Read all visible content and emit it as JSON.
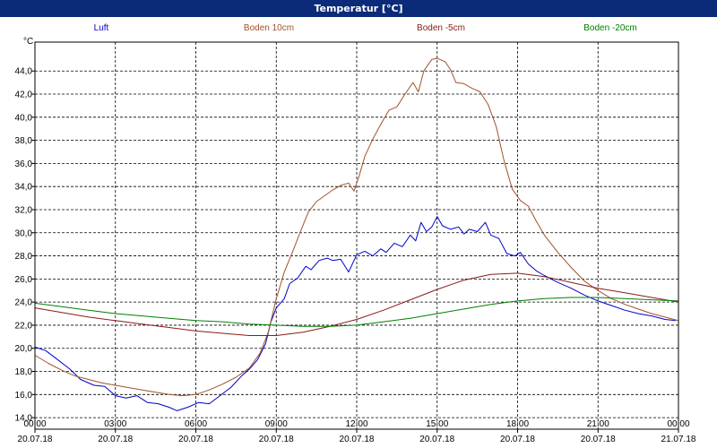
{
  "window": {
    "title": "Temperatur [°C]"
  },
  "chart_data": {
    "type": "line",
    "ylabel": "°C",
    "ylim": [
      13.0,
      46.5
    ],
    "xlim": [
      0,
      24
    ],
    "grid": true,
    "legend_placement": "top",
    "y_ticks": [
      {
        "value": 14,
        "label": "14,0"
      },
      {
        "value": 16,
        "label": "16,0"
      },
      {
        "value": 18,
        "label": "18,0"
      },
      {
        "value": 20,
        "label": "20,0"
      },
      {
        "value": 22,
        "label": "22,0"
      },
      {
        "value": 24,
        "label": "24,0"
      },
      {
        "value": 26,
        "label": "26,0"
      },
      {
        "value": 28,
        "label": "28,0"
      },
      {
        "value": 30,
        "label": "30,0"
      },
      {
        "value": 32,
        "label": "32,0"
      },
      {
        "value": 34,
        "label": "34,0"
      },
      {
        "value": 36,
        "label": "36,0"
      },
      {
        "value": 38,
        "label": "38,0"
      },
      {
        "value": 40,
        "label": "40,0"
      },
      {
        "value": 42,
        "label": "42,0"
      },
      {
        "value": 44,
        "label": "44,0"
      }
    ],
    "x_ticks": [
      {
        "value": 0,
        "time": "00:00",
        "date": "20.07.18"
      },
      {
        "value": 3,
        "time": "03:00",
        "date": "20.07.18"
      },
      {
        "value": 6,
        "time": "06:00",
        "date": "20.07.18"
      },
      {
        "value": 9,
        "time": "09:00",
        "date": "20.07.18"
      },
      {
        "value": 12,
        "time": "12:00",
        "date": "20.07.18"
      },
      {
        "value": 15,
        "time": "15:00",
        "date": "20.07.18"
      },
      {
        "value": 18,
        "time": "18:00",
        "date": "20.07.18"
      },
      {
        "value": 21,
        "time": "21:00",
        "date": "20.07.18"
      },
      {
        "value": 24,
        "time": "00:00",
        "date": "21.07.18"
      }
    ],
    "series": [
      {
        "name": "Luft",
        "color": "#0000cc",
        "points": [
          [
            0,
            20.1
          ],
          [
            0.4,
            19.8
          ],
          [
            0.8,
            19.1
          ],
          [
            1.3,
            18.2
          ],
          [
            1.7,
            17.3
          ],
          [
            2.2,
            16.8
          ],
          [
            2.6,
            16.7
          ],
          [
            3.0,
            15.9
          ],
          [
            3.4,
            15.7
          ],
          [
            3.8,
            15.9
          ],
          [
            4.2,
            15.3
          ],
          [
            4.6,
            15.2
          ],
          [
            5.0,
            14.9
          ],
          [
            5.3,
            14.6
          ],
          [
            5.7,
            14.9
          ],
          [
            6.1,
            15.3
          ],
          [
            6.5,
            15.2
          ],
          [
            6.9,
            15.9
          ],
          [
            7.3,
            16.6
          ],
          [
            7.7,
            17.6
          ],
          [
            8.0,
            18.2
          ],
          [
            8.3,
            19.0
          ],
          [
            8.6,
            20.4
          ],
          [
            8.8,
            22.3
          ],
          [
            9.0,
            23.5
          ],
          [
            9.3,
            24.3
          ],
          [
            9.5,
            25.6
          ],
          [
            9.8,
            26.1
          ],
          [
            10.1,
            27.1
          ],
          [
            10.3,
            26.8
          ],
          [
            10.6,
            27.6
          ],
          [
            10.9,
            27.8
          ],
          [
            11.1,
            27.6
          ],
          [
            11.4,
            27.7
          ],
          [
            11.7,
            26.6
          ],
          [
            12.0,
            28.1
          ],
          [
            12.3,
            28.4
          ],
          [
            12.6,
            28.0
          ],
          [
            12.9,
            28.6
          ],
          [
            13.1,
            28.3
          ],
          [
            13.4,
            29.1
          ],
          [
            13.7,
            28.8
          ],
          [
            14.0,
            29.8
          ],
          [
            14.2,
            29.3
          ],
          [
            14.4,
            30.9
          ],
          [
            14.6,
            30.1
          ],
          [
            14.8,
            30.5
          ],
          [
            15.0,
            31.4
          ],
          [
            15.2,
            30.6
          ],
          [
            15.5,
            30.3
          ],
          [
            15.8,
            30.5
          ],
          [
            16.0,
            29.9
          ],
          [
            16.2,
            30.3
          ],
          [
            16.5,
            30.1
          ],
          [
            16.8,
            30.9
          ],
          [
            17.0,
            29.8
          ],
          [
            17.3,
            29.5
          ],
          [
            17.6,
            28.2
          ],
          [
            17.9,
            28.0
          ],
          [
            18.1,
            28.3
          ],
          [
            18.4,
            27.3
          ],
          [
            18.7,
            26.7
          ],
          [
            19.0,
            26.3
          ],
          [
            19.5,
            25.7
          ],
          [
            20.0,
            25.2
          ],
          [
            20.5,
            24.6
          ],
          [
            21.0,
            24.1
          ],
          [
            21.5,
            23.7
          ],
          [
            22.0,
            23.3
          ],
          [
            22.5,
            23.0
          ],
          [
            23.0,
            22.8
          ],
          [
            23.5,
            22.5
          ],
          [
            23.9,
            22.4
          ]
        ]
      },
      {
        "name": "Boden 10cm",
        "color": "#a0522d",
        "points": [
          [
            0,
            19.4
          ],
          [
            0.5,
            18.7
          ],
          [
            1.0,
            18.1
          ],
          [
            1.5,
            17.6
          ],
          [
            2.0,
            17.3
          ],
          [
            2.5,
            17.0
          ],
          [
            3.0,
            16.8
          ],
          [
            3.5,
            16.6
          ],
          [
            4.0,
            16.4
          ],
          [
            4.5,
            16.2
          ],
          [
            5.0,
            16.0
          ],
          [
            5.5,
            15.9
          ],
          [
            6.0,
            16.0
          ],
          [
            6.5,
            16.4
          ],
          [
            7.0,
            16.9
          ],
          [
            7.5,
            17.5
          ],
          [
            8.0,
            18.3
          ],
          [
            8.4,
            19.6
          ],
          [
            8.7,
            21.4
          ],
          [
            9.0,
            24.3
          ],
          [
            9.3,
            26.6
          ],
          [
            9.6,
            28.3
          ],
          [
            9.9,
            30.1
          ],
          [
            10.2,
            31.8
          ],
          [
            10.5,
            32.7
          ],
          [
            10.8,
            33.2
          ],
          [
            11.1,
            33.7
          ],
          [
            11.4,
            34.1
          ],
          [
            11.7,
            34.3
          ],
          [
            11.9,
            33.6
          ],
          [
            12.1,
            35.0
          ],
          [
            12.3,
            36.6
          ],
          [
            12.6,
            38.1
          ],
          [
            12.9,
            39.4
          ],
          [
            13.2,
            40.6
          ],
          [
            13.5,
            40.9
          ],
          [
            13.8,
            42.0
          ],
          [
            14.1,
            43.0
          ],
          [
            14.3,
            42.2
          ],
          [
            14.5,
            44.0
          ],
          [
            14.8,
            45.0
          ],
          [
            15.0,
            45.1
          ],
          [
            15.3,
            44.8
          ],
          [
            15.5,
            44.1
          ],
          [
            15.7,
            43.0
          ],
          [
            16.0,
            42.9
          ],
          [
            16.3,
            42.5
          ],
          [
            16.6,
            42.2
          ],
          [
            16.9,
            41.1
          ],
          [
            17.2,
            39.2
          ],
          [
            17.5,
            36.2
          ],
          [
            17.8,
            33.8
          ],
          [
            18.1,
            32.8
          ],
          [
            18.4,
            32.3
          ],
          [
            18.7,
            31.0
          ],
          [
            19.0,
            29.8
          ],
          [
            19.5,
            28.3
          ],
          [
            20.0,
            27.0
          ],
          [
            20.5,
            25.8
          ],
          [
            21.0,
            25.0
          ],
          [
            21.5,
            24.3
          ],
          [
            22.0,
            23.8
          ],
          [
            22.5,
            23.4
          ],
          [
            23.0,
            23.0
          ],
          [
            23.5,
            22.7
          ],
          [
            24.0,
            22.4
          ]
        ]
      },
      {
        "name": "Boden -5cm",
        "color": "#8b1a1a",
        "points": [
          [
            0,
            23.5
          ],
          [
            1.0,
            23.1
          ],
          [
            2.0,
            22.7
          ],
          [
            3.0,
            22.4
          ],
          [
            4.0,
            22.1
          ],
          [
            5.0,
            21.8
          ],
          [
            6.0,
            21.5
          ],
          [
            7.0,
            21.3
          ],
          [
            8.0,
            21.1
          ],
          [
            9.0,
            21.1
          ],
          [
            10.0,
            21.4
          ],
          [
            11.0,
            21.9
          ],
          [
            12.0,
            22.5
          ],
          [
            13.0,
            23.3
          ],
          [
            14.0,
            24.2
          ],
          [
            15.0,
            25.1
          ],
          [
            16.0,
            25.9
          ],
          [
            17.0,
            26.4
          ],
          [
            18.0,
            26.5
          ],
          [
            19.0,
            26.2
          ],
          [
            20.0,
            25.7
          ],
          [
            21.0,
            25.2
          ],
          [
            22.0,
            24.8
          ],
          [
            23.0,
            24.4
          ],
          [
            24.0,
            24.0
          ]
        ]
      },
      {
        "name": "Boden -20cm",
        "color": "#008000",
        "points": [
          [
            0,
            23.9
          ],
          [
            1.0,
            23.6
          ],
          [
            2.0,
            23.3
          ],
          [
            3.0,
            23.0
          ],
          [
            4.0,
            22.8
          ],
          [
            5.0,
            22.6
          ],
          [
            6.0,
            22.4
          ],
          [
            7.0,
            22.3
          ],
          [
            8.0,
            22.1
          ],
          [
            9.0,
            22.0
          ],
          [
            10.0,
            21.9
          ],
          [
            11.0,
            21.9
          ],
          [
            12.0,
            22.0
          ],
          [
            13.0,
            22.3
          ],
          [
            14.0,
            22.6
          ],
          [
            15.0,
            23.0
          ],
          [
            16.0,
            23.4
          ],
          [
            17.0,
            23.8
          ],
          [
            18.0,
            24.1
          ],
          [
            19.0,
            24.3
          ],
          [
            20.0,
            24.4
          ],
          [
            21.0,
            24.4
          ],
          [
            22.0,
            24.3
          ],
          [
            23.0,
            24.2
          ],
          [
            24.0,
            24.1
          ]
        ]
      }
    ]
  }
}
